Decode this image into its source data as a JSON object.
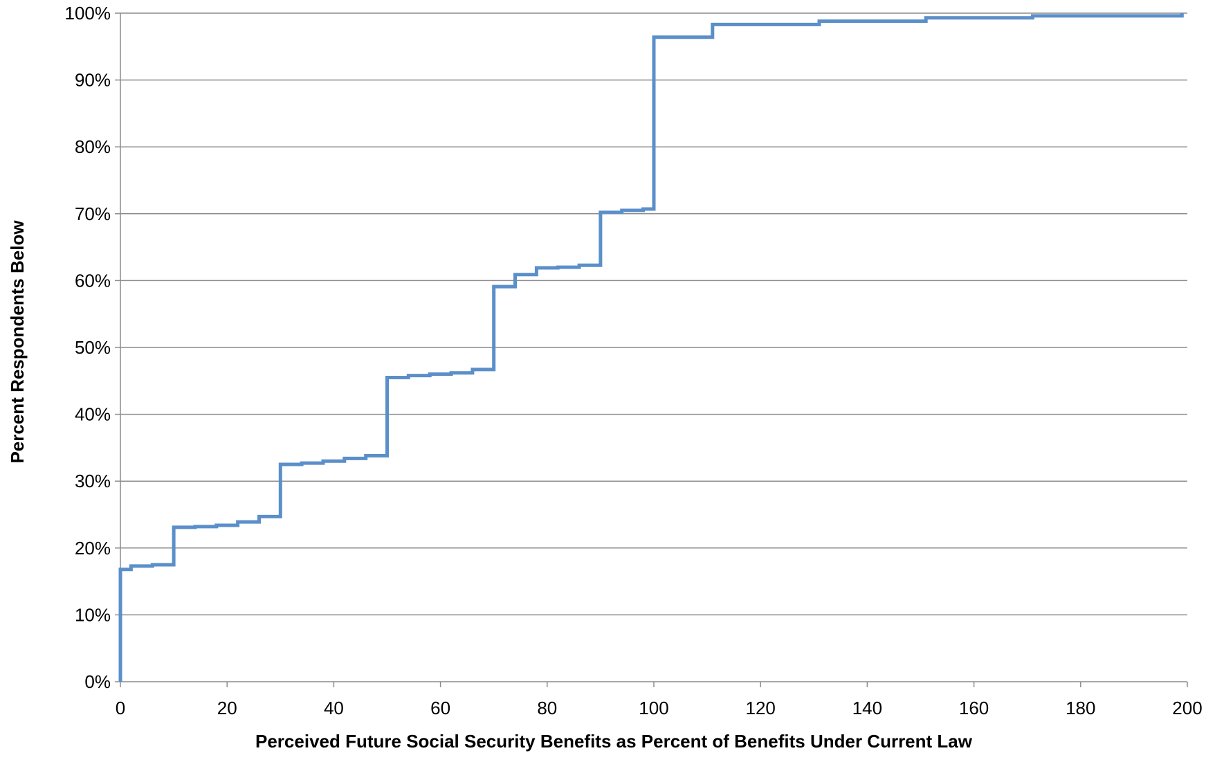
{
  "chart_data": {
    "type": "line",
    "step": true,
    "title": "",
    "xlabel": "Perceived Future Social Security Benefits as Percent of Benefits Under Current Law",
    "ylabel": "Percent Respondents Below",
    "xlim": [
      0,
      200
    ],
    "ylim": [
      0,
      100
    ],
    "x_ticks": [
      0,
      20,
      40,
      60,
      80,
      100,
      120,
      140,
      160,
      180,
      200
    ],
    "x_tick_labels": [
      "0",
      "20",
      "40",
      "60",
      "80",
      "100",
      "120",
      "140",
      "160",
      "180",
      "200"
    ],
    "y_ticks": [
      0,
      10,
      20,
      30,
      40,
      50,
      60,
      70,
      80,
      90,
      100
    ],
    "y_tick_labels": [
      "0%",
      "10%",
      "20%",
      "30%",
      "40%",
      "50%",
      "60%",
      "70%",
      "80%",
      "90%",
      "100%"
    ],
    "grid": "horizontal",
    "legend": "none",
    "line_color": "#5b8fc9",
    "gridline_color": "#8c8c8c",
    "axis_color": "#8c8c8c",
    "series": [
      {
        "points": [
          [
            0,
            0
          ],
          [
            0,
            16.8
          ],
          [
            2,
            17.3
          ],
          [
            6,
            17.5
          ],
          [
            10,
            23.1
          ],
          [
            14,
            23.2
          ],
          [
            18,
            23.4
          ],
          [
            22,
            23.9
          ],
          [
            26,
            24.7
          ],
          [
            30,
            32.5
          ],
          [
            34,
            32.7
          ],
          [
            38,
            33.0
          ],
          [
            42,
            33.4
          ],
          [
            46,
            33.8
          ],
          [
            50,
            45.5
          ],
          [
            54,
            45.8
          ],
          [
            58,
            46.0
          ],
          [
            62,
            46.2
          ],
          [
            66,
            46.7
          ],
          [
            70,
            59.1
          ],
          [
            74,
            60.9
          ],
          [
            78,
            61.9
          ],
          [
            82,
            62.0
          ],
          [
            86,
            62.3
          ],
          [
            90,
            70.2
          ],
          [
            94,
            70.5
          ],
          [
            98,
            70.7
          ],
          [
            100,
            96.4
          ],
          [
            111,
            98.3
          ],
          [
            131,
            98.8
          ],
          [
            151,
            99.3
          ],
          [
            171,
            99.6
          ],
          [
            199,
            100
          ]
        ]
      }
    ]
  }
}
